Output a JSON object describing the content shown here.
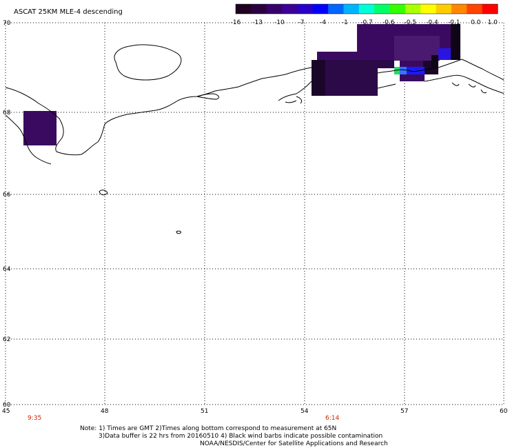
{
  "title": "ASCAT 25KM MLE-4 descending",
  "colorbar": {
    "labels": [
      "-16",
      "-13",
      "-10",
      "-7",
      "-4",
      "-1",
      "-0.7",
      "-0.6",
      "-0.5",
      "-0.4",
      "-0.1",
      "0.0",
      "1.0"
    ],
    "colors": [
      "#200020",
      "#2c0040",
      "#38006a",
      "#3c0096",
      "#2a00c8",
      "#0000ff",
      "#0066ff",
      "#00b4ff",
      "#00ffd8",
      "#00ff66",
      "#33ff00",
      "#aaff00",
      "#ffff00",
      "#ffcc00",
      "#ff8800",
      "#ff4400",
      "#ff0000"
    ]
  },
  "latitude_labels": [
    "70",
    "68",
    "66",
    "64",
    "62",
    "60"
  ],
  "longitude_labels": [
    "45",
    "48",
    "51",
    "54",
    "57",
    "60"
  ],
  "time_labels": [
    "9:35",
    "6:14"
  ],
  "notes": {
    "line1": "Note: 1) Times are GMT 2)Times along bottom correspond to measurement at 65N",
    "line2": "3)Data buffer is 22 hrs from 20160510 4) Black wind barbs indicate possible contamination",
    "line3": "NOAA/NESDIS/Center for Satellite Applications and Research"
  },
  "colors": {
    "data_purple": "#3a0a60",
    "data_dark": "#1a0628",
    "data_blue": "#1a1aff",
    "data_green": "#22dd66",
    "text_red": "#cc2200"
  }
}
